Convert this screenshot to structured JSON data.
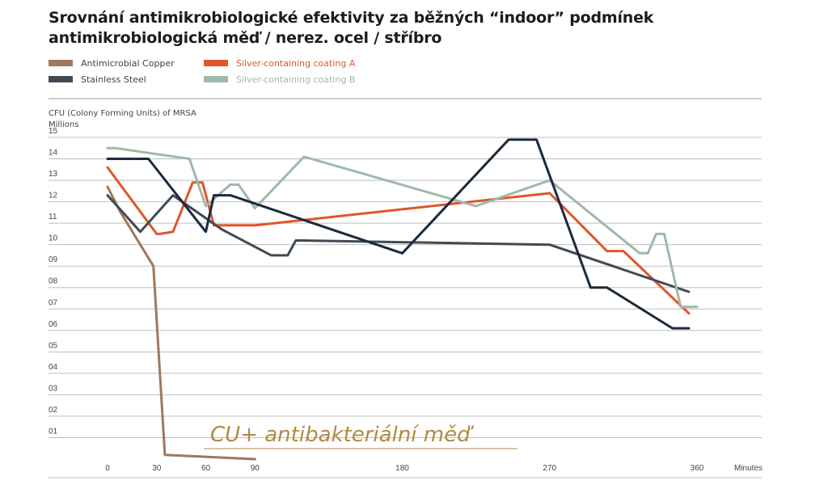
{
  "title": {
    "line1": "Srovnání antimikrobiologické efektivity za běžných “indoor” podmínek",
    "line2": "antimikrobiologická měď / nerez. ocel / stříbro"
  },
  "colors": {
    "copper": "#a0785c",
    "steel": "#3f4a55",
    "silverA": "#e0562a",
    "silverB": "#9fb9a8",
    "navy": "#1b2a3d",
    "annotation": "#b38a45",
    "grid": "#bfbfbf"
  },
  "chart_data": {
    "type": "line",
    "ylabel_line1": "CFU (Colony Forming Units) of MRSA",
    "ylabel_line2": "Millions",
    "xlabel": "Minutes",
    "xticks": [
      "0",
      "30",
      "60",
      "90",
      "180",
      "270",
      "360"
    ],
    "yticks": [
      "01",
      "02",
      "03",
      "04",
      "05",
      "06",
      "07",
      "08",
      "09",
      "10",
      "11",
      "12",
      "13",
      "14",
      "15"
    ],
    "ylim": [
      0,
      15.5
    ],
    "xlim": [
      0,
      360
    ],
    "grid": true,
    "legend_position": "top-left",
    "legend": [
      {
        "label": "Antimicrobial Copper",
        "color": "#a0785c"
      },
      {
        "label": "Silver-containing coating A",
        "color": "#e0562a"
      },
      {
        "label": "Stainless Steel",
        "color": "#3f4a55"
      },
      {
        "label": "Silver-containing coating B",
        "color": "#9fb9a8"
      }
    ],
    "annotation": "CU+ antibakteriální měď",
    "series": [
      {
        "name": "Antimicrobial Copper",
        "color": "#a0785c",
        "x": [
          0,
          8,
          28,
          35,
          90
        ],
        "y": [
          12.7,
          11.5,
          9.0,
          0.2,
          0.0
        ]
      },
      {
        "name": "Silver-containing coating A",
        "color": "#e0562a",
        "x": [
          0,
          30,
          32,
          40,
          52,
          58,
          65,
          90,
          270,
          305,
          315,
          355
        ],
        "y": [
          13.6,
          10.5,
          10.5,
          10.6,
          12.9,
          12.9,
          10.9,
          10.9,
          12.4,
          9.7,
          9.7,
          6.8
        ]
      },
      {
        "name": "Stainless Steel",
        "color": "#3f4a55",
        "x": [
          0,
          20,
          40,
          70,
          100,
          110,
          115,
          270,
          355
        ],
        "y": [
          12.3,
          10.6,
          12.3,
          10.7,
          9.5,
          9.5,
          10.2,
          10.0,
          7.8
        ]
      },
      {
        "name": "Silver-containing coating B",
        "color": "#9fb9a8",
        "x": [
          0,
          5,
          50,
          60,
          75,
          80,
          90,
          120,
          225,
          270,
          325,
          330,
          335,
          340,
          350,
          360
        ],
        "y": [
          14.5,
          14.5,
          14.0,
          11.8,
          12.8,
          12.8,
          11.7,
          14.1,
          11.8,
          13.0,
          9.6,
          9.6,
          10.5,
          10.5,
          7.1,
          7.1
        ]
      },
      {
        "name": "",
        "color": "#1b2a3d",
        "x": [
          0,
          25,
          60,
          65,
          75,
          180,
          245,
          262,
          295,
          305,
          345,
          355
        ],
        "y": [
          14.0,
          14.0,
          10.6,
          12.3,
          12.3,
          9.6,
          14.9,
          14.9,
          8.0,
          8.0,
          6.1,
          6.1
        ]
      }
    ]
  }
}
